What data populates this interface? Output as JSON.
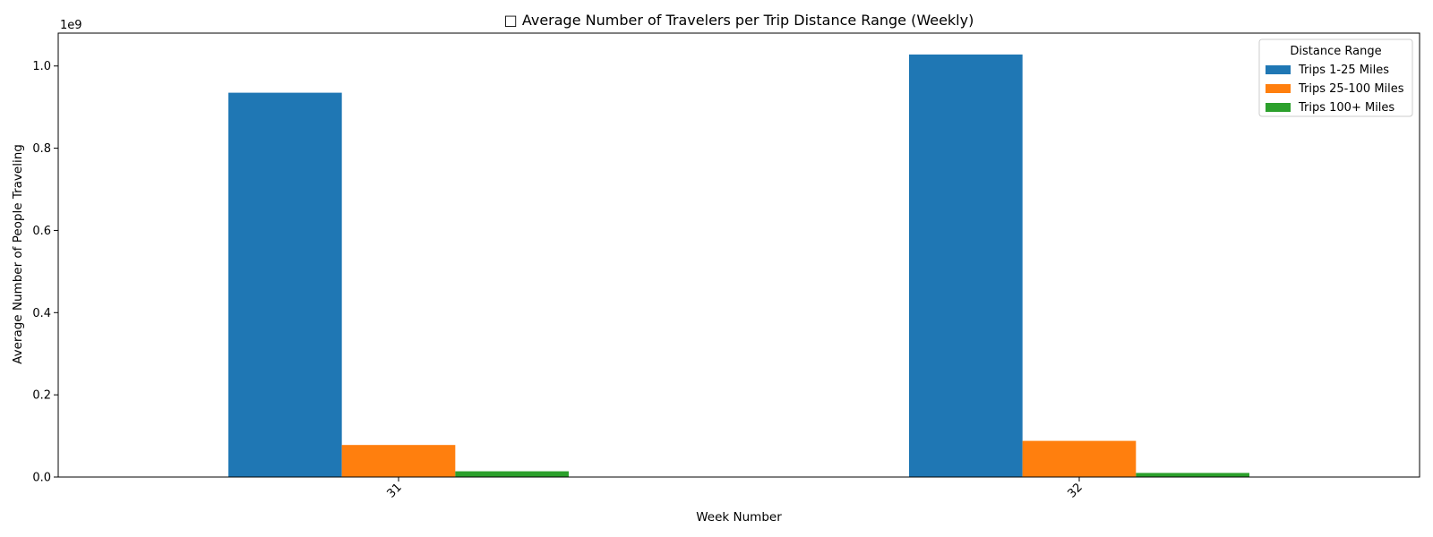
{
  "chart_data": {
    "type": "bar",
    "title": "□ Average Number of Travelers per Trip Distance Range (Weekly)",
    "xlabel": "Week Number",
    "ylabel": "Average Number of People Traveling",
    "y_offset_label": "1e9",
    "categories": [
      "31",
      "32"
    ],
    "series": [
      {
        "name": "Trips 1-25 Miles",
        "color": "#1f77b4",
        "values": [
          935000000,
          1028000000
        ]
      },
      {
        "name": "Trips 25-100 Miles",
        "color": "#ff7f0e",
        "values": [
          78000000,
          88000000
        ]
      },
      {
        "name": "Trips 100+ Miles",
        "color": "#2ca02c",
        "values": [
          14000000,
          10000000
        ]
      }
    ],
    "ylim": [
      0,
      1080000000
    ],
    "yticks": [
      0,
      200000000,
      400000000,
      600000000,
      800000000,
      1000000000
    ],
    "ytick_labels": [
      "0.0",
      "0.2",
      "0.4",
      "0.6",
      "0.8",
      "1.0"
    ],
    "legend": {
      "title": "Distance Range",
      "position": "top-right"
    },
    "grid": false
  }
}
